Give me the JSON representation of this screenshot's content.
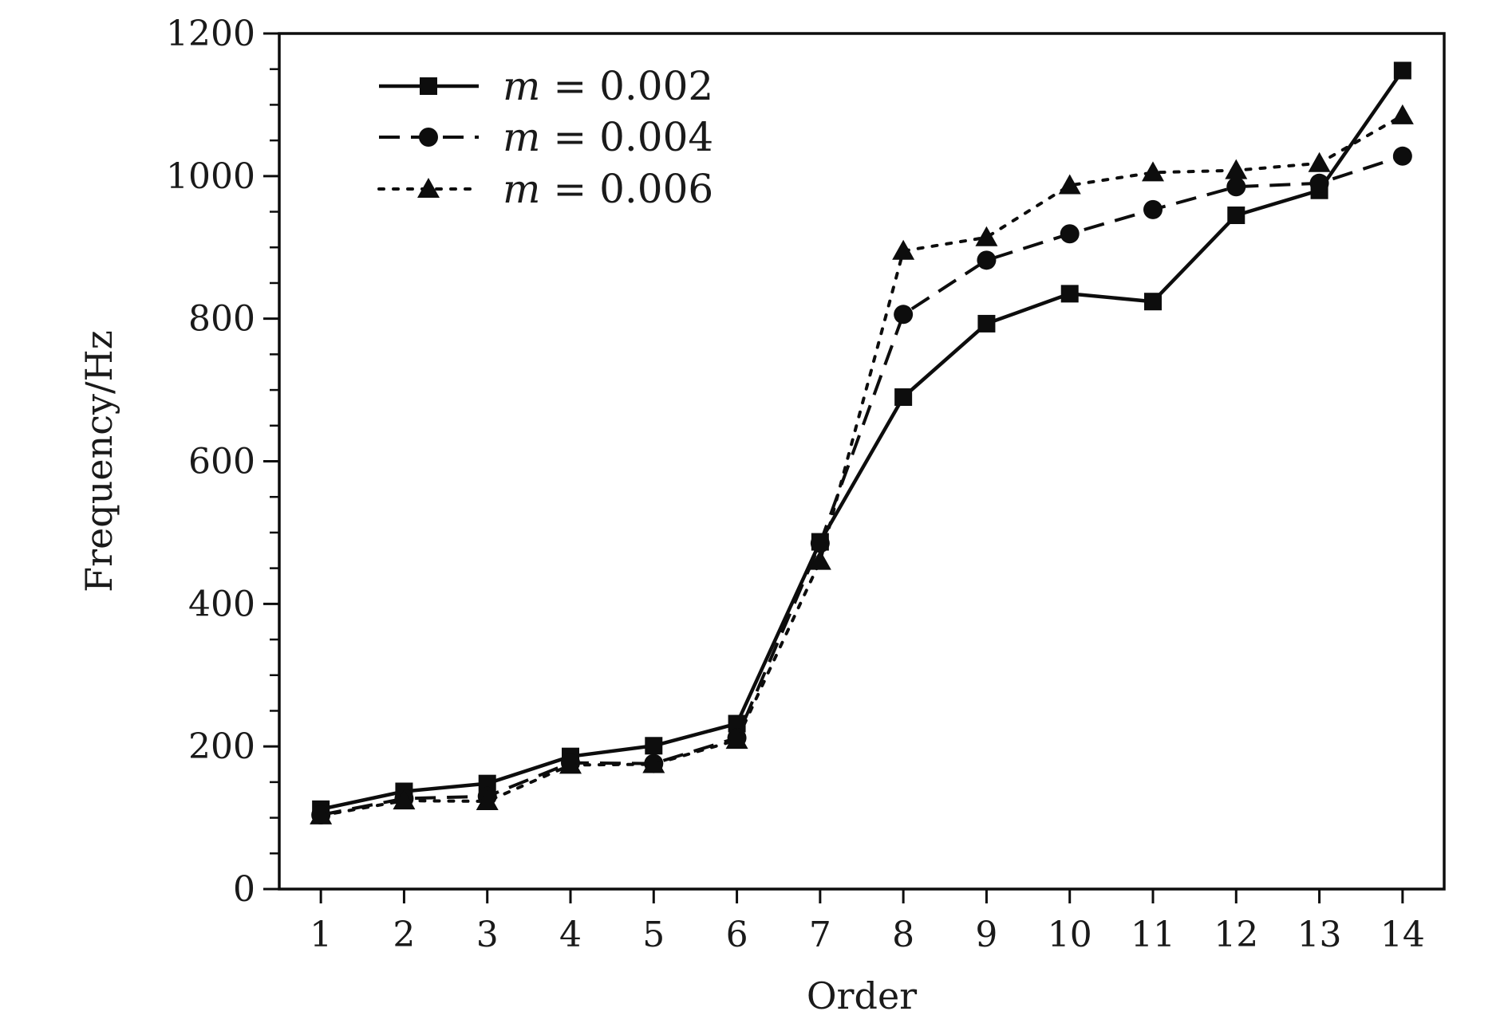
{
  "chart_data": {
    "type": "line",
    "title": "",
    "xlabel": "Order",
    "ylabel": "Frequency/Hz",
    "categories": [
      "1",
      "2",
      "3",
      "4",
      "5",
      "6",
      "7",
      "8",
      "9",
      "10",
      "11",
      "12",
      "13",
      "14"
    ],
    "x": [
      1,
      2,
      3,
      4,
      5,
      6,
      7,
      8,
      9,
      10,
      11,
      12,
      13,
      14
    ],
    "ylim": [
      0,
      1200
    ],
    "yticks": [
      0,
      200,
      400,
      600,
      800,
      1000,
      1200
    ],
    "grid": false,
    "legend_position": "top-left",
    "series": [
      {
        "name": "m = 0.002",
        "var": "m",
        "eq": " = 0.002",
        "line_style": "solid",
        "marker": "square",
        "values": [
          112,
          137,
          148,
          186,
          201,
          232,
          487,
          690,
          793,
          835,
          824,
          945,
          980,
          1148
        ]
      },
      {
        "name": "m = 0.004",
        "var": "m",
        "eq": " = 0.004",
        "line_style": "dashed",
        "marker": "circle",
        "values": [
          104,
          127,
          130,
          177,
          176,
          212,
          485,
          806,
          882,
          919,
          953,
          985,
          990,
          1028
        ]
      },
      {
        "name": "m = 0.006",
        "var": "m",
        "eq": " = 0.006",
        "line_style": "dotted",
        "marker": "triangle",
        "values": [
          103,
          124,
          123,
          174,
          175,
          209,
          460,
          895,
          914,
          987,
          1005,
          1008,
          1018,
          1085
        ]
      }
    ],
    "colors": {
      "line": "#0d0d0d",
      "axis": "#0d0d0d",
      "text": "#1a1a1a"
    }
  }
}
